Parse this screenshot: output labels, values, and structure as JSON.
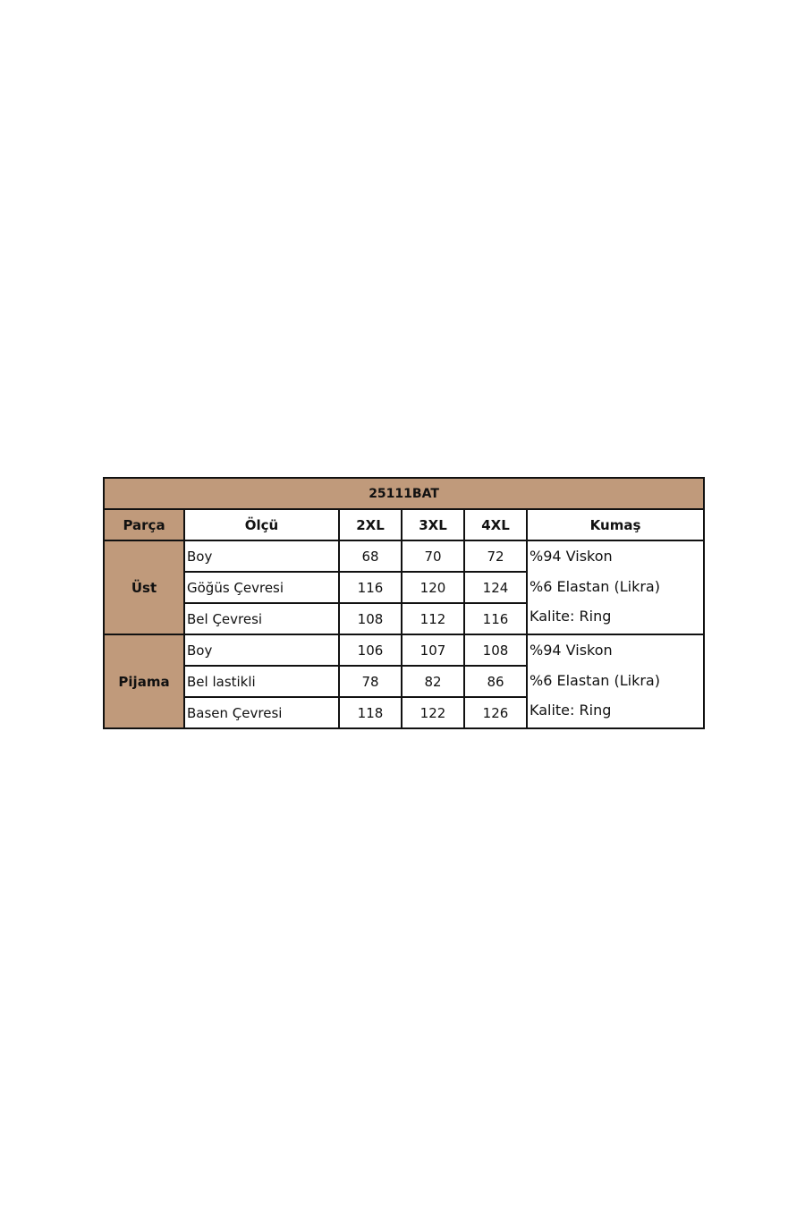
{
  "table": {
    "title": "25111BAT",
    "headers": [
      "Parça",
      "Ölçü",
      "2XL",
      "3XL",
      "4XL",
      "Kumaş"
    ],
    "groups": [
      {
        "name": "Üst",
        "rows": [
          {
            "measure": "Boy",
            "values": [
              "68",
              "70",
              "72"
            ]
          },
          {
            "measure": "Göğüs Çevresi",
            "values": [
              "116",
              "120",
              "124"
            ]
          },
          {
            "measure": "Bel Çevresi",
            "values": [
              "108",
              "112",
              "116"
            ]
          }
        ],
        "fabric": [
          "%94 Viskon",
          "%6 Elastan (Likra)",
          "Kalite: Ring"
        ]
      },
      {
        "name": "Pijama",
        "rows": [
          {
            "measure": "Boy",
            "values": [
              "106",
              "107",
              "108"
            ]
          },
          {
            "measure": "Bel lastikli",
            "values": [
              "78",
              "82",
              "86"
            ]
          },
          {
            "measure": "Basen Çevresi",
            "values": [
              "118",
              "122",
              "126"
            ]
          }
        ],
        "fabric": [
          "%94 Viskon",
          "%6 Elastan (Likra)",
          "Kalite: Ring"
        ]
      }
    ],
    "colors": {
      "header_fill": "#c09a7b",
      "border": "#111111"
    }
  }
}
